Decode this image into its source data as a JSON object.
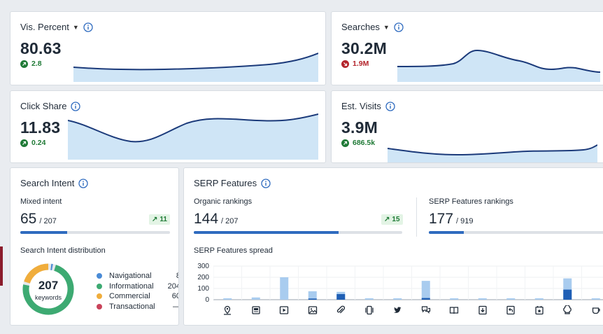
{
  "colors": {
    "accent": "#2f6bbf",
    "line": "#1b3a7a",
    "area": "#cfe5f6",
    "positive": "#1f7a36",
    "negative": "#b3242b"
  },
  "metrics": {
    "vis_percent": {
      "title": "Vis. Percent",
      "value": "80.63",
      "delta": "2.8",
      "direction": "up",
      "has_dropdown": true
    },
    "searches": {
      "title": "Searches",
      "value": "30.2M",
      "delta": "1.9M",
      "direction": "down",
      "has_dropdown": true
    },
    "click_share": {
      "title": "Click Share",
      "value": "11.83",
      "delta": "0.24",
      "direction": "up",
      "has_dropdown": false
    },
    "est_visits": {
      "title": "Est. Visits",
      "value": "3.9M",
      "delta": "686.5k",
      "direction": "up",
      "has_dropdown": false
    }
  },
  "search_intent": {
    "title": "Search Intent",
    "mixed_label": "Mixed intent",
    "mixed_value": "65",
    "mixed_total": "/ 207",
    "mixed_badge": "11",
    "mixed_fraction": 0.314,
    "distribution_label": "Search Intent distribution",
    "donut_total": "207",
    "donut_caption": "keywords",
    "legend": [
      {
        "label": "Navigational",
        "value": "8",
        "count": 8,
        "color": "#4a8bd6"
      },
      {
        "label": "Informational",
        "value": "204",
        "count": 204,
        "color": "#3daa72"
      },
      {
        "label": "Commercial",
        "value": "60",
        "count": 60,
        "color": "#f0ad3c"
      },
      {
        "label": "Transactional",
        "value": "—",
        "count": 0,
        "color": "#c9435a"
      }
    ]
  },
  "serp_features": {
    "title": "SERP Features",
    "organic_label": "Organic rankings",
    "organic_value": "144",
    "organic_total": "/ 207",
    "organic_badge": "15",
    "organic_fraction": 0.696,
    "serp_label": "SERP Features rankings",
    "serp_value": "177",
    "serp_total": "/ 919",
    "serp_fraction": 0.193,
    "spread_label": "SERP Features spread",
    "y_ticks": [
      "300",
      "200",
      "100",
      "0"
    ],
    "ymax": 300,
    "bars": [
      {
        "icon": "map-pin-icon",
        "light": 12,
        "dark": 0
      },
      {
        "icon": "news-icon",
        "light": 20,
        "dark": 0
      },
      {
        "icon": "video-icon",
        "light": 200,
        "dark": 0
      },
      {
        "icon": "image-icon",
        "light": 75,
        "dark": 10
      },
      {
        "icon": "paperclip-icon",
        "light": 70,
        "dark": 50
      },
      {
        "icon": "carousel-icon",
        "light": 4,
        "dark": 0
      },
      {
        "icon": "twitter-icon",
        "light": 4,
        "dark": 0
      },
      {
        "icon": "qa-icon",
        "light": 168,
        "dark": 15
      },
      {
        "icon": "book-icon",
        "light": 4,
        "dark": 0
      },
      {
        "icon": "download-icon",
        "light": 4,
        "dark": 0
      },
      {
        "icon": "reply-icon",
        "light": 4,
        "dark": 0
      },
      {
        "icon": "star-calendar-icon",
        "light": 4,
        "dark": 0
      },
      {
        "icon": "chef-hat-icon",
        "light": 190,
        "dark": 90
      },
      {
        "icon": "cup-icon",
        "light": 4,
        "dark": 0
      }
    ]
  }
}
